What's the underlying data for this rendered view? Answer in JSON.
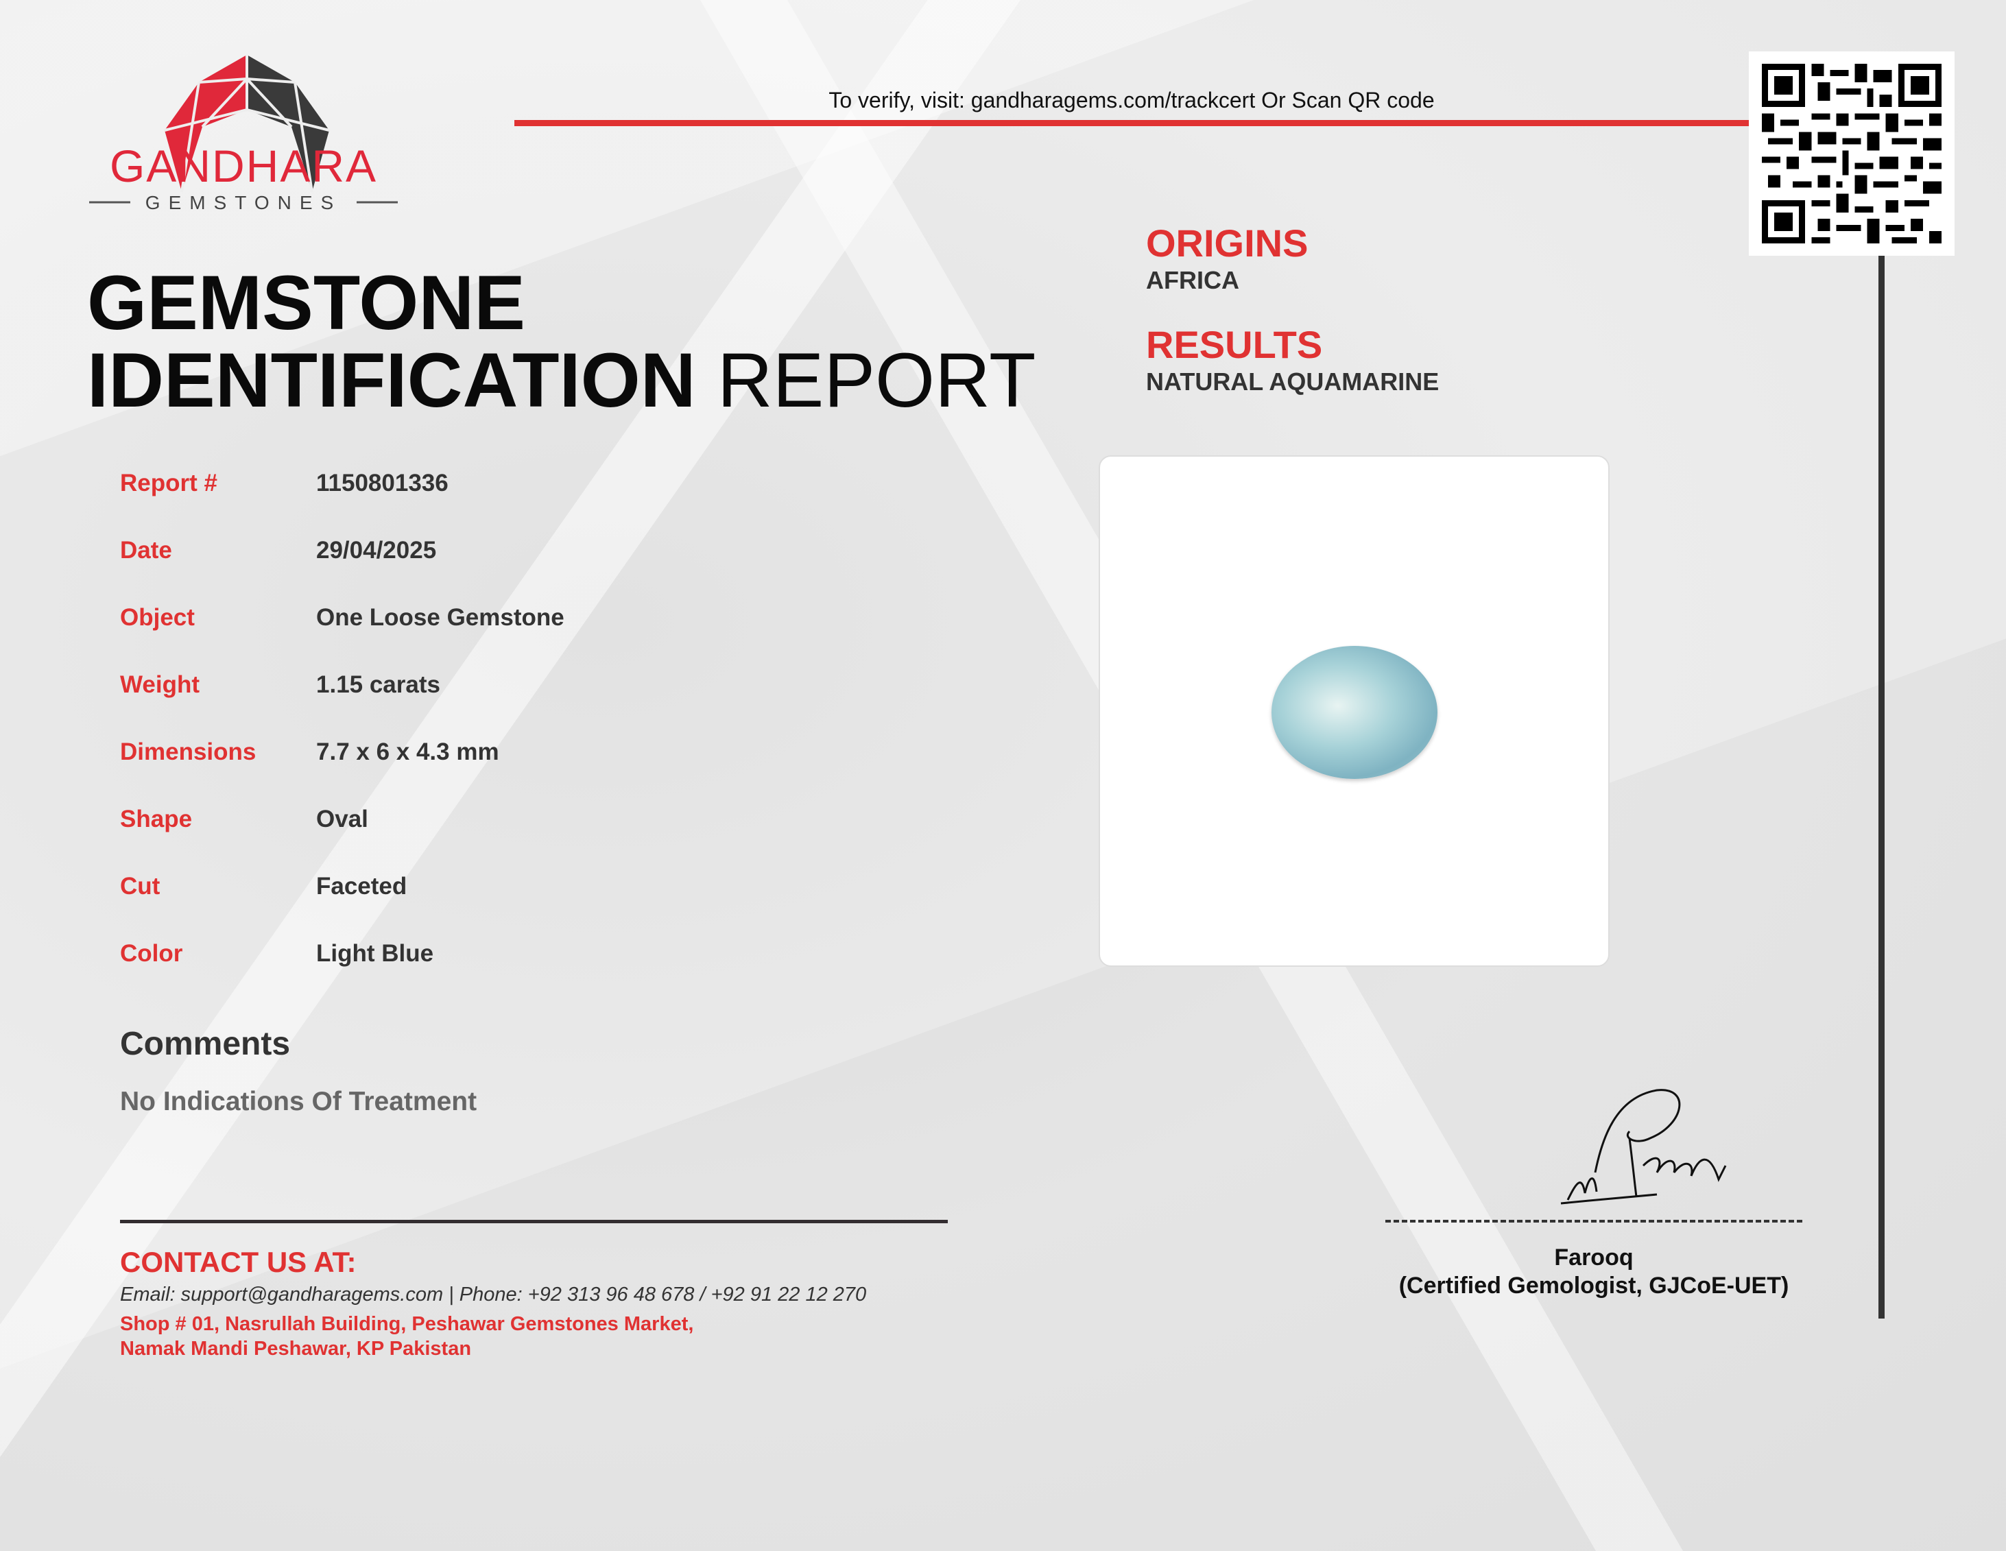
{
  "brand": {
    "name": "GANDHARA",
    "tagline": "GEMSTONES",
    "colors": {
      "red": "#e03232",
      "dark": "#3a3a3a"
    }
  },
  "verify_text": "To verify, visit: gandharagems.com/trackcert Or Scan QR code",
  "title": {
    "line1": "GEMSTONE",
    "line2_bold": "IDENTIFICATION",
    "line2_light": "REPORT"
  },
  "fields": [
    {
      "label": "Report #",
      "value": "1150801336"
    },
    {
      "label": "Date",
      "value": "29/04/2025"
    },
    {
      "label": "Object",
      "value": "One Loose Gemstone"
    },
    {
      "label": "Weight",
      "value": "1.15 carats"
    },
    {
      "label": "Dimensions",
      "value": "7.7 x 6 x 4.3 mm"
    },
    {
      "label": "Shape",
      "value": "Oval"
    },
    {
      "label": "Cut",
      "value": "Faceted"
    },
    {
      "label": "Color",
      "value": "Light Blue"
    }
  ],
  "comments": {
    "heading": "Comments",
    "text": "No Indications Of Treatment"
  },
  "origins": {
    "heading": "ORIGINS",
    "value": "AFRICA"
  },
  "results": {
    "heading": "RESULTS",
    "value": "NATURAL AQUAMARINE"
  },
  "contact": {
    "heading": "CONTACT US AT:",
    "line": "Email: support@gandharagems.com | Phone: +92 313 96 48 678 / +92 91 22 12 270",
    "address1": "Shop # 01, Nasrullah Building, Peshawar Gemstones Market,",
    "address2": "Namak Mandi Peshawar, KP Pakistan"
  },
  "gemologist": {
    "name": "Farooq",
    "title": "(Certified Gemologist, GJCoE-UET)"
  }
}
